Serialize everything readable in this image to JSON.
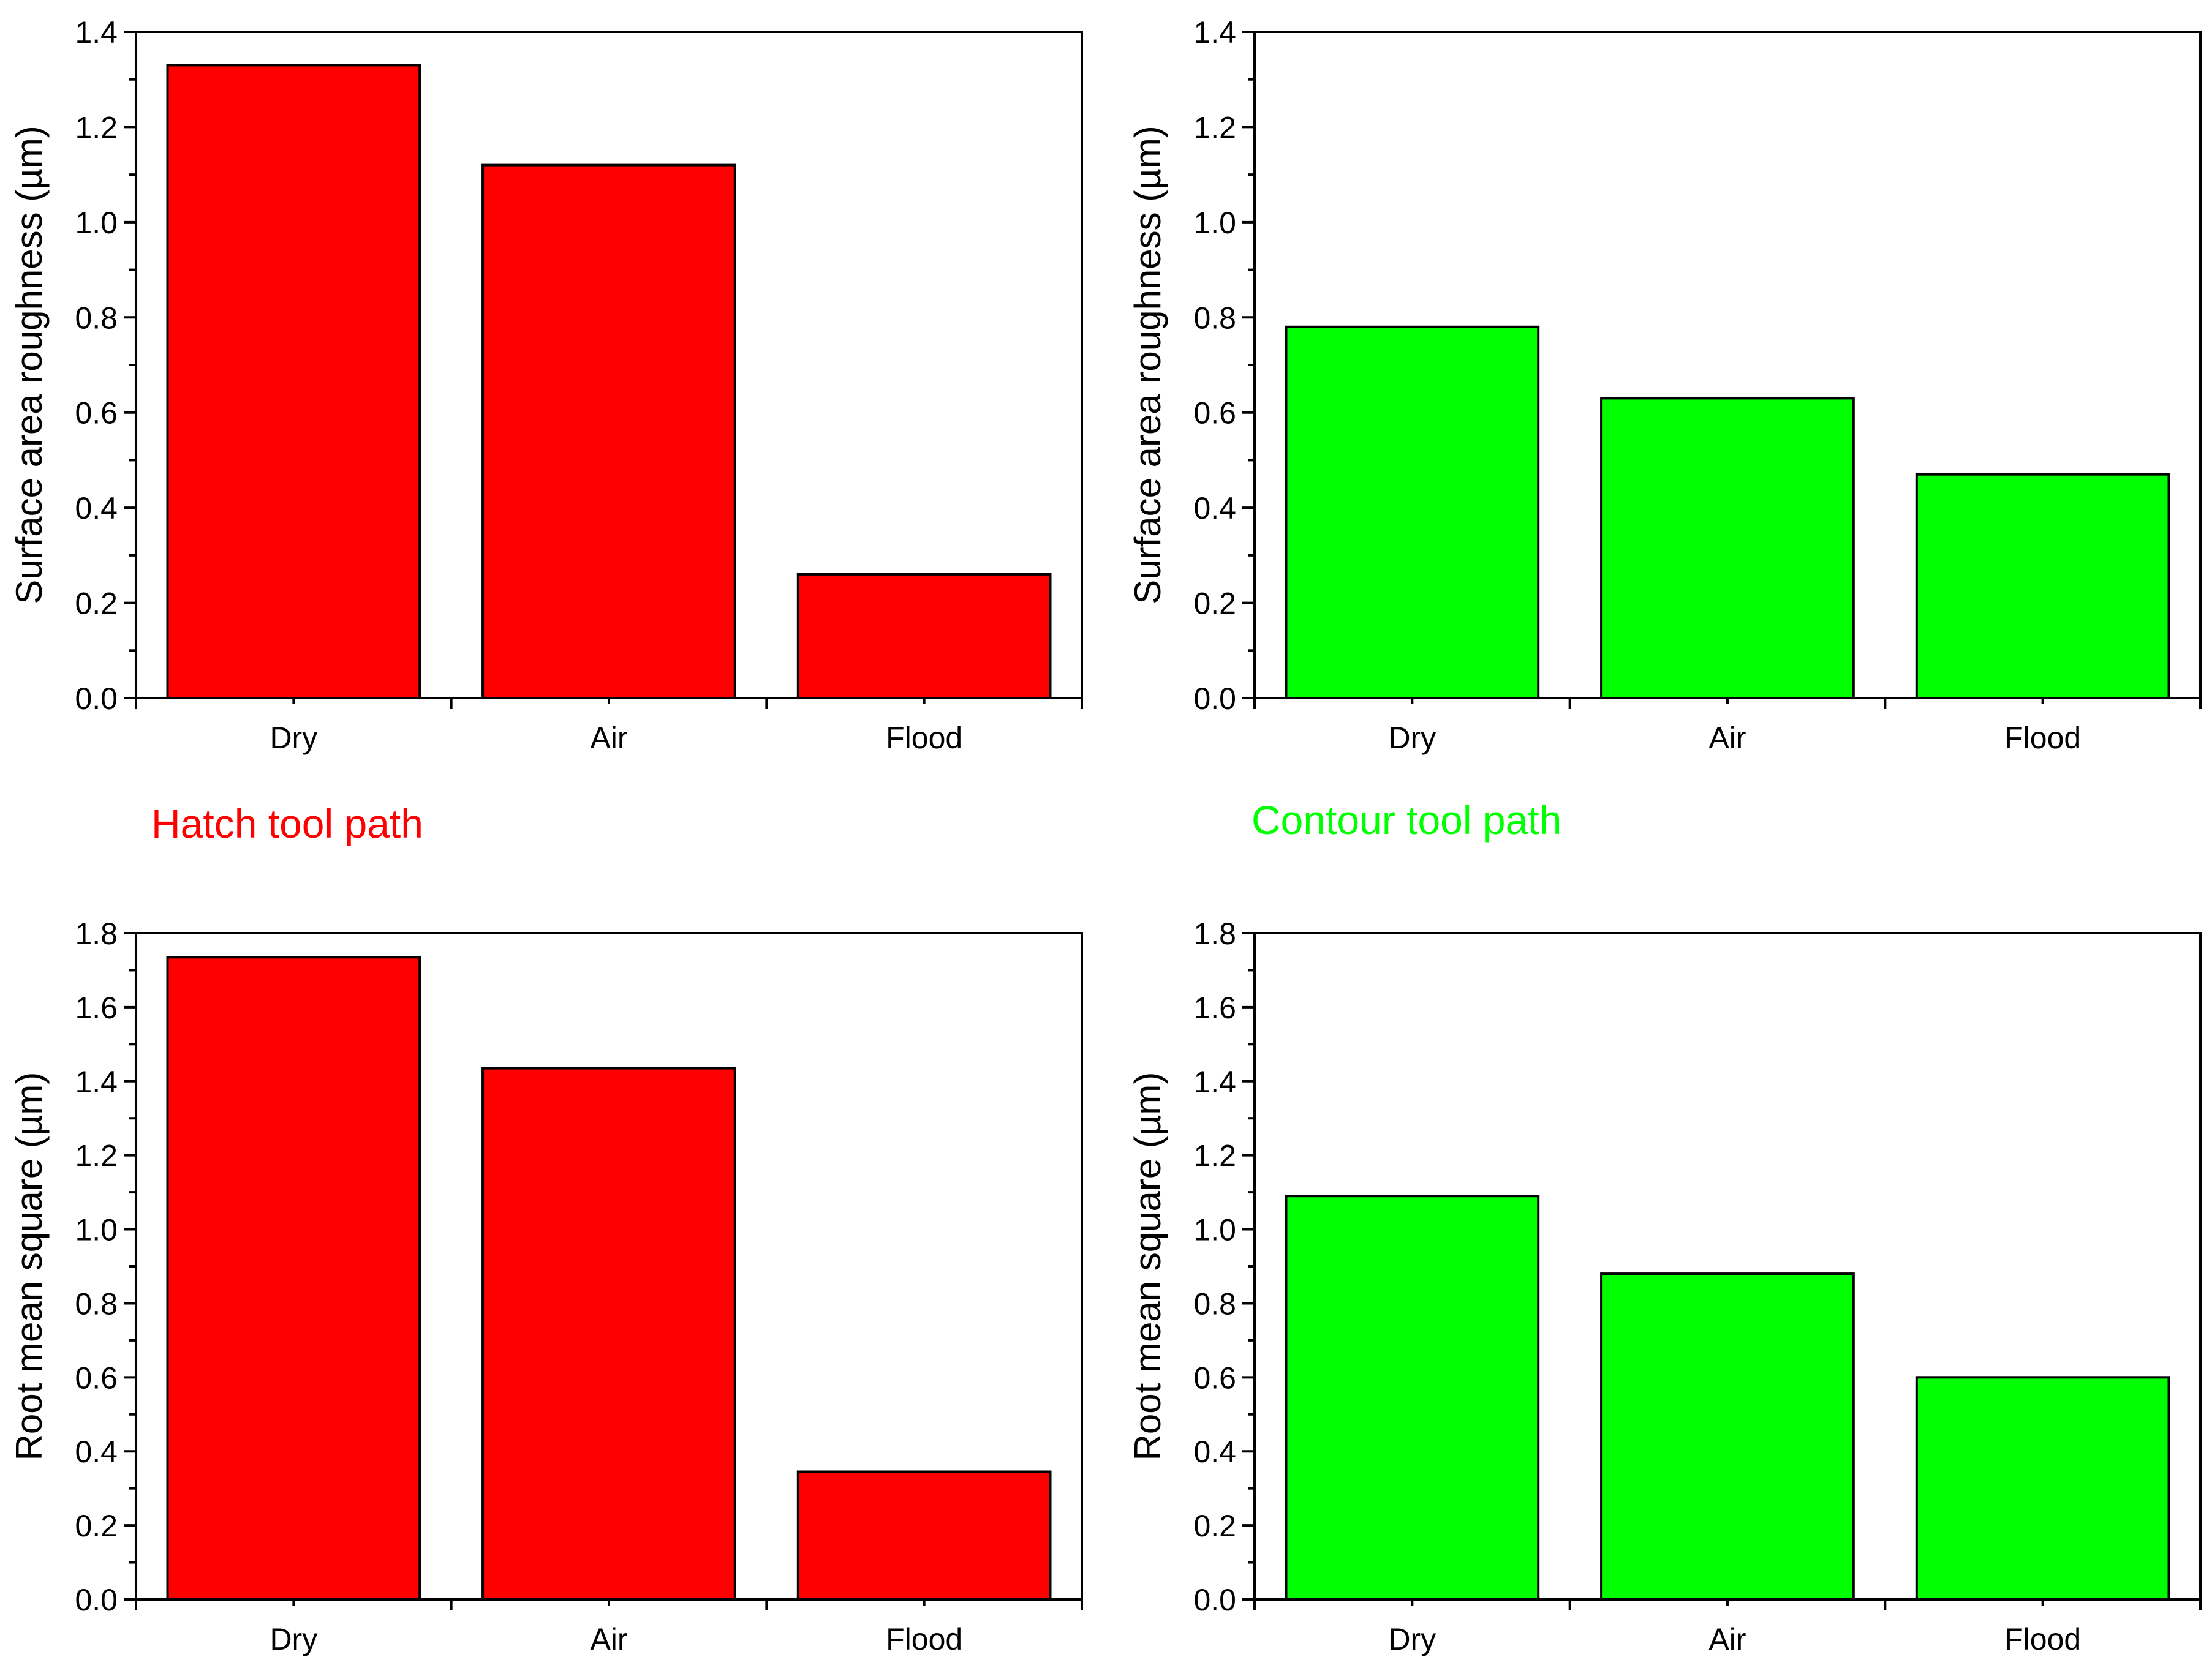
{
  "figure_labels": {
    "hatch": "Hatch tool path",
    "contour": "Contour tool path"
  },
  "colors": {
    "hatch": "#ff0000",
    "contour": "#00ff00",
    "axis": "#000000",
    "bar_edge": "#000000"
  },
  "chart_data": [
    {
      "id": "hatch-sa",
      "type": "bar",
      "title": "",
      "xlabel": "",
      "ylabel": "Surface area roughness (µm)",
      "categories": [
        "Dry",
        "Air",
        "Flood"
      ],
      "values": [
        1.33,
        1.12,
        0.26
      ],
      "ylim": [
        0,
        1.4
      ],
      "yticks": [
        "0.0",
        "0.2",
        "0.4",
        "0.6",
        "0.8",
        "1.0",
        "1.2",
        "1.4"
      ],
      "color_key": "hatch"
    },
    {
      "id": "contour-sa",
      "type": "bar",
      "title": "",
      "xlabel": "",
      "ylabel": "Surface area roughness (µm)",
      "categories": [
        "Dry",
        "Air",
        "Flood"
      ],
      "values": [
        0.78,
        0.63,
        0.47
      ],
      "ylim": [
        0,
        1.4
      ],
      "yticks": [
        "0.0",
        "0.2",
        "0.4",
        "0.6",
        "0.8",
        "1.0",
        "1.2",
        "1.4"
      ],
      "color_key": "contour"
    },
    {
      "id": "hatch-rms",
      "type": "bar",
      "title": "",
      "xlabel": "",
      "ylabel": "Root mean square (µm)",
      "categories": [
        "Dry",
        "Air",
        "Flood"
      ],
      "values": [
        1.735,
        1.435,
        0.345
      ],
      "ylim": [
        0,
        1.8
      ],
      "yticks": [
        "0.0",
        "0.2",
        "0.4",
        "0.6",
        "0.8",
        "1.0",
        "1.2",
        "1.4",
        "1.6",
        "1.8"
      ],
      "color_key": "hatch"
    },
    {
      "id": "contour-rms",
      "type": "bar",
      "title": "",
      "xlabel": "",
      "ylabel": "Root mean square (µm)",
      "categories": [
        "Dry",
        "Air",
        "Flood"
      ],
      "values": [
        1.09,
        0.88,
        0.6
      ],
      "ylim": [
        0,
        1.8
      ],
      "yticks": [
        "0.0",
        "0.2",
        "0.4",
        "0.6",
        "0.8",
        "1.0",
        "1.2",
        "1.4",
        "1.6",
        "1.8"
      ],
      "color_key": "contour"
    }
  ]
}
